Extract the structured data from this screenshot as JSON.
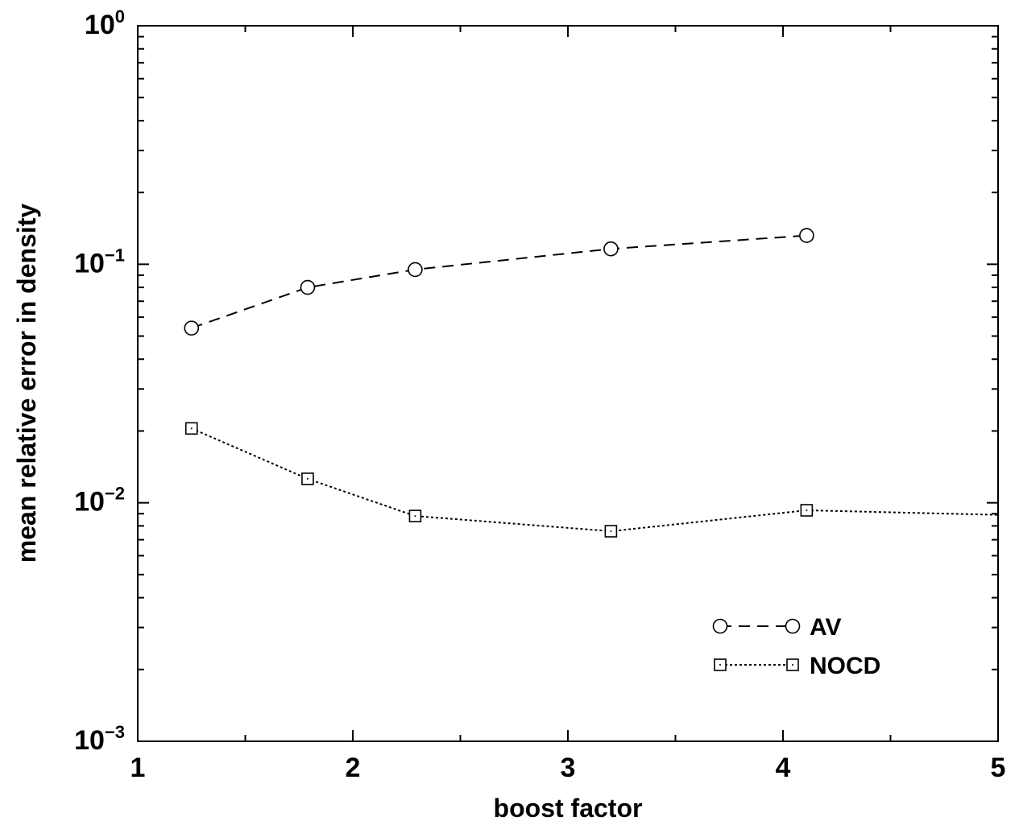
{
  "chart_data": {
    "type": "line",
    "title": "",
    "xlabel": "boost factor",
    "ylabel": "mean relative error in density",
    "xlim": [
      1,
      5
    ],
    "ylim": [
      0.001,
      1
    ],
    "yscale": "log",
    "grid": false,
    "legend": "bottom-right",
    "x_ticks": [
      {
        "value": 1,
        "label": "1"
      },
      {
        "value": 2,
        "label": "2"
      },
      {
        "value": 3,
        "label": "3"
      },
      {
        "value": 4,
        "label": "4"
      },
      {
        "value": 5,
        "label": "5"
      }
    ],
    "y_ticks": [
      {
        "value": 0.001,
        "base": "10",
        "exp": "−3"
      },
      {
        "value": 0.01,
        "base": "10",
        "exp": "−2"
      },
      {
        "value": 0.1,
        "base": "10",
        "exp": "−1"
      },
      {
        "value": 1,
        "base": "10",
        "exp": "0"
      }
    ],
    "series": [
      {
        "name": "AV",
        "marker": "circle",
        "linestyle": "dashed",
        "color": "#000000",
        "x": [
          1.25,
          1.79,
          2.29,
          3.2,
          4.11
        ],
        "y": [
          0.054,
          0.08,
          0.095,
          0.116,
          0.132
        ]
      },
      {
        "name": "NOCD",
        "marker": "square",
        "linestyle": "dotted",
        "color": "#000000",
        "x": [
          1.25,
          1.79,
          2.29,
          3.2,
          4.11,
          5.0
        ],
        "y": [
          0.0205,
          0.0126,
          0.0088,
          0.0076,
          0.0093,
          0.0089
        ],
        "marker_count": 5
      }
    ]
  }
}
